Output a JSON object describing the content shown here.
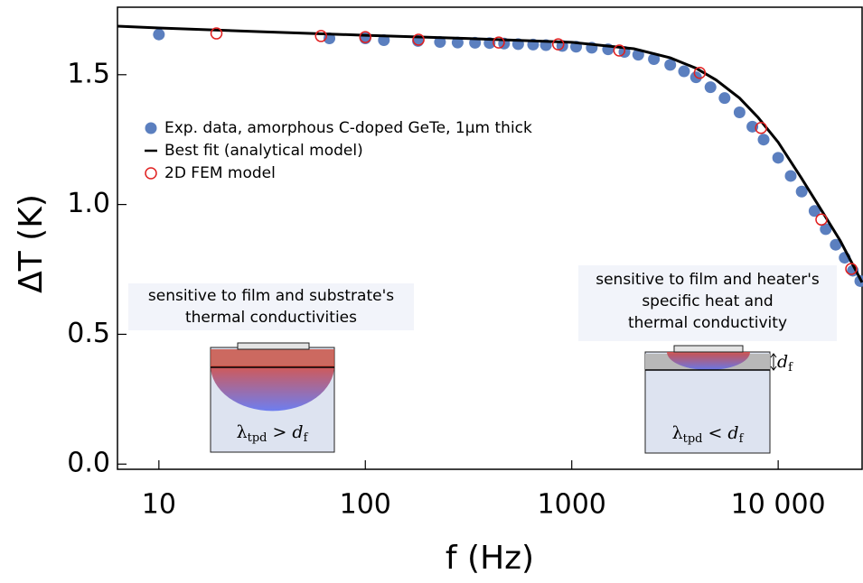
{
  "chart_data": {
    "type": "scatter",
    "x_label": "f (Hz)",
    "y_label": "ΔT (K)",
    "log_x": true,
    "xlim": [
      6.3,
      25500
    ],
    "ylim": [
      -0.02,
      1.76
    ],
    "xticks": [
      10,
      100,
      1000,
      {
        "value": 10000,
        "label": "10 000"
      }
    ],
    "yticks": [
      {
        "value": 0,
        "label": "0.0"
      },
      0.5,
      {
        "value": 1,
        "label": "1.0"
      },
      1.5
    ],
    "legend": "left",
    "series": [
      {
        "name": "Exp. data, amorphous C-doped GeTe, 1μm thick",
        "marker": "dot",
        "color": "#5b7fbf",
        "x": [
          10,
          67,
          100,
          123,
          180,
          230,
          280,
          340,
          400,
          470,
          550,
          650,
          750,
          900,
          1050,
          1250,
          1500,
          1800,
          2100,
          2500,
          3000,
          3500,
          4000,
          4700,
          5500,
          6500,
          7500,
          8500,
          10000,
          11500,
          13000,
          15000,
          17000,
          19000,
          21000,
          23000,
          25000
        ],
        "values": [
          1.655,
          1.64,
          1.64,
          1.633,
          1.63,
          1.626,
          1.624,
          1.623,
          1.622,
          1.62,
          1.618,
          1.616,
          1.614,
          1.611,
          1.608,
          1.604,
          1.598,
          1.588,
          1.577,
          1.56,
          1.538,
          1.513,
          1.49,
          1.452,
          1.41,
          1.355,
          1.3,
          1.25,
          1.18,
          1.11,
          1.05,
          0.975,
          0.905,
          0.845,
          0.795,
          0.745,
          0.705
        ]
      },
      {
        "name": "Best fit (analytical model)",
        "marker": "line",
        "color": "#000000",
        "x": [
          6.3,
          10,
          30,
          100,
          300,
          1000,
          2000,
          3000,
          4000,
          5000,
          6500,
          8000,
          10000,
          13000,
          16000,
          20000,
          25500
        ],
        "values": [
          1.687,
          1.68,
          1.666,
          1.652,
          1.64,
          1.625,
          1.6,
          1.565,
          1.525,
          1.48,
          1.41,
          1.335,
          1.24,
          1.1,
          0.985,
          0.86,
          0.7
        ]
      },
      {
        "name": "2D FEM model",
        "marker": "circle",
        "color": "#e02020",
        "x": [
          19,
          61,
          100,
          181,
          443,
          860,
          1700,
          4170,
          8260,
          16200,
          22600
        ],
        "values": [
          1.659,
          1.649,
          1.645,
          1.635,
          1.624,
          1.617,
          1.593,
          1.507,
          1.295,
          0.942,
          0.752
        ]
      }
    ],
    "annotations": [
      {
        "lines": [
          "sensitive to film and substrate's",
          "thermal conductivities"
        ],
        "formula": {
          "symbol": "λ",
          "symbol_sub": "tpd",
          "relation": ">",
          "rhs": "d",
          "rhs_sub": "f"
        }
      },
      {
        "lines": [
          "sensitive to film and heater's",
          "specific heat and",
          "thermal conductivity"
        ],
        "formula": {
          "symbol": "λ",
          "symbol_sub": "tpd",
          "relation": "<",
          "rhs": "d",
          "rhs_sub": "f"
        },
        "thickness": {
          "symbol": "d",
          "sub": "f"
        }
      }
    ]
  }
}
